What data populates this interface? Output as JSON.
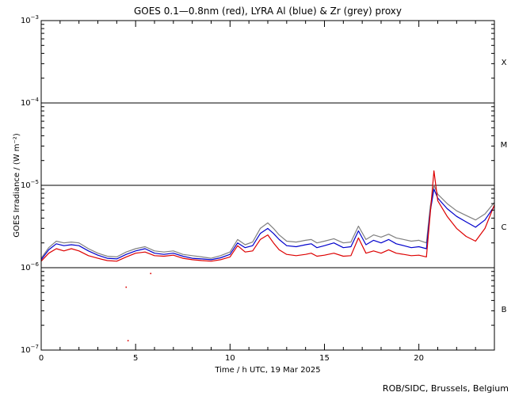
{
  "chart_data": {
    "type": "line",
    "title": "GOES 0.1—0.8nm (red), LYRA Al (blue) & Zr (grey) proxy",
    "xlabel": "Time / h UTC, 19 Mar 2025",
    "ylabel": "GOES Irradiance / (W m⁻²)",
    "x_ticks": [
      0,
      5,
      10,
      15,
      20
    ],
    "x_tick_labels": [
      "0",
      "5",
      "10",
      "15",
      "20"
    ],
    "xlim": [
      0,
      24
    ],
    "ylim": [
      1e-07,
      0.001
    ],
    "yscale": "log",
    "y_ticks": [
      {
        "base": "10",
        "exp": "−7",
        "value": 1e-07
      },
      {
        "base": "10",
        "exp": "−6",
        "value": 1e-06
      },
      {
        "base": "10",
        "exp": "−5",
        "value": 1e-05
      },
      {
        "base": "10",
        "exp": "−4",
        "value": 0.0001
      },
      {
        "base": "10",
        "exp": "−3",
        "value": 0.001
      }
    ],
    "flare_class_lines": [
      1e-06,
      1e-05,
      0.0001
    ],
    "flare_classes": [
      {
        "label": "B",
        "value": 3.162e-07
      },
      {
        "label": "C",
        "value": 3.162e-06
      },
      {
        "label": "M",
        "value": 3.162e-05
      },
      {
        "label": "X",
        "value": 0.0003162
      }
    ],
    "series": [
      {
        "color": "#808080",
        "x": [
          0,
          0.4,
          0.8,
          1.2,
          1.6,
          2.0,
          2.5,
          3.0,
          3.5,
          4.0,
          4.5,
          5.0,
          5.5,
          6.0,
          6.5,
          7.0,
          7.5,
          8.0,
          8.5,
          9.0,
          9.5,
          10.0,
          10.4,
          10.8,
          11.2,
          11.6,
          12.0,
          12.3,
          12.6,
          13.0,
          13.5,
          14.0,
          14.3,
          14.6,
          15.0,
          15.5,
          16.0,
          16.4,
          16.8,
          17.2,
          17.6,
          18.0,
          18.4,
          18.8,
          19.2,
          19.6,
          20.0,
          20.4,
          20.6,
          20.8,
          21.0,
          21.5,
          22.0,
          22.5,
          23.0,
          23.5,
          24.0
        ],
        "y": [
          1.3e-06,
          1.75e-06,
          2.1e-06,
          2e-06,
          2.05e-06,
          2e-06,
          1.7e-06,
          1.5e-06,
          1.38e-06,
          1.35e-06,
          1.55e-06,
          1.7e-06,
          1.8e-06,
          1.6e-06,
          1.55e-06,
          1.6e-06,
          1.45e-06,
          1.4e-06,
          1.35e-06,
          1.3e-06,
          1.4e-06,
          1.55e-06,
          2.2e-06,
          1.9e-06,
          2.05e-06,
          3e-06,
          3.5e-06,
          3e-06,
          2.5e-06,
          2.1e-06,
          2.05e-06,
          2.15e-06,
          2.2e-06,
          2e-06,
          2.1e-06,
          2.25e-06,
          2e-06,
          2.05e-06,
          3.2e-06,
          2.2e-06,
          2.5e-06,
          2.35e-06,
          2.55e-06,
          2.3e-06,
          2.2e-06,
          2.1e-06,
          2.15e-06,
          2e-06,
          5.5e-06,
          1e-05,
          7.8e-06,
          6e-06,
          4.9e-06,
          4.3e-06,
          3.8e-06,
          4.5e-06,
          6.2e-06
        ]
      },
      {
        "color": "#0000cc",
        "x": [
          0,
          0.4,
          0.8,
          1.2,
          1.6,
          2.0,
          2.5,
          3.0,
          3.5,
          4.0,
          4.5,
          5.0,
          5.5,
          6.0,
          6.5,
          7.0,
          7.5,
          8.0,
          8.5,
          9.0,
          9.5,
          10.0,
          10.4,
          10.8,
          11.2,
          11.6,
          12.0,
          12.3,
          12.6,
          13.0,
          13.5,
          14.0,
          14.3,
          14.6,
          15.0,
          15.5,
          16.0,
          16.4,
          16.8,
          17.2,
          17.6,
          18.0,
          18.4,
          18.8,
          19.2,
          19.6,
          20.0,
          20.4,
          20.6,
          20.8,
          21.0,
          21.5,
          22.0,
          22.5,
          23.0,
          23.5,
          24.0
        ],
        "y": [
          1.25e-06,
          1.65e-06,
          1.95e-06,
          1.85e-06,
          1.9e-06,
          1.85e-06,
          1.6e-06,
          1.42e-06,
          1.3e-06,
          1.28e-06,
          1.45e-06,
          1.6e-06,
          1.7e-06,
          1.5e-06,
          1.45e-06,
          1.5e-06,
          1.38e-06,
          1.3e-06,
          1.28e-06,
          1.25e-06,
          1.32e-06,
          1.45e-06,
          2e-06,
          1.75e-06,
          1.85e-06,
          2.6e-06,
          3e-06,
          2.6e-06,
          2.2e-06,
          1.85e-06,
          1.8e-06,
          1.9e-06,
          1.95e-06,
          1.75e-06,
          1.85e-06,
          2e-06,
          1.75e-06,
          1.8e-06,
          2.8e-06,
          1.9e-06,
          2.15e-06,
          2e-06,
          2.2e-06,
          1.95e-06,
          1.85e-06,
          1.75e-06,
          1.8e-06,
          1.7e-06,
          4.8e-06,
          9e-06,
          7e-06,
          5.2e-06,
          4.2e-06,
          3.6e-06,
          3.1e-06,
          3.8e-06,
          5.6e-06
        ]
      },
      {
        "color": "#dd0000",
        "x": [
          0,
          0.4,
          0.8,
          1.2,
          1.6,
          2.0,
          2.5,
          3.0,
          3.5,
          4.0,
          4.5,
          5.0,
          5.5,
          6.0,
          6.5,
          7.0,
          7.5,
          8.0,
          8.5,
          9.0,
          9.5,
          10.0,
          10.4,
          10.8,
          11.2,
          11.6,
          12.0,
          12.3,
          12.6,
          13.0,
          13.5,
          14.0,
          14.3,
          14.6,
          15.0,
          15.5,
          16.0,
          16.4,
          16.8,
          17.2,
          17.6,
          18.0,
          18.4,
          18.8,
          19.2,
          19.6,
          20.0,
          20.4,
          20.6,
          20.8,
          21.0,
          21.5,
          22.0,
          22.5,
          23.0,
          23.5,
          24.0
        ],
        "y": [
          1.2e-06,
          1.5e-06,
          1.7e-06,
          1.6e-06,
          1.7e-06,
          1.6e-06,
          1.4e-06,
          1.3e-06,
          1.22e-06,
          1.2e-06,
          1.35e-06,
          1.5e-06,
          1.55e-06,
          1.4e-06,
          1.38e-06,
          1.42e-06,
          1.3e-06,
          1.25e-06,
          1.22e-06,
          1.2e-06,
          1.25e-06,
          1.35e-06,
          1.85e-06,
          1.55e-06,
          1.6e-06,
          2.2e-06,
          2.5e-06,
          2e-06,
          1.65e-06,
          1.45e-06,
          1.4e-06,
          1.45e-06,
          1.5e-06,
          1.38e-06,
          1.42e-06,
          1.5e-06,
          1.38e-06,
          1.4e-06,
          2.3e-06,
          1.5e-06,
          1.6e-06,
          1.5e-06,
          1.65e-06,
          1.5e-06,
          1.45e-06,
          1.4e-06,
          1.42e-06,
          1.35e-06,
          4.5e-06,
          1.5e-05,
          6.5e-06,
          4.2e-06,
          3e-06,
          2.4e-06,
          2.1e-06,
          3e-06,
          5.8e-06
        ]
      }
    ],
    "outlier_points": [
      {
        "x": 4.5,
        "y": 5.8e-07,
        "color": "#dd0000"
      },
      {
        "x": 4.6,
        "y": 1.3e-07,
        "color": "#dd0000"
      },
      {
        "x": 5.8,
        "y": 8.5e-07,
        "color": "#dd0000"
      }
    ],
    "credit": "ROB/SIDC, Brussels, Belgium"
  }
}
